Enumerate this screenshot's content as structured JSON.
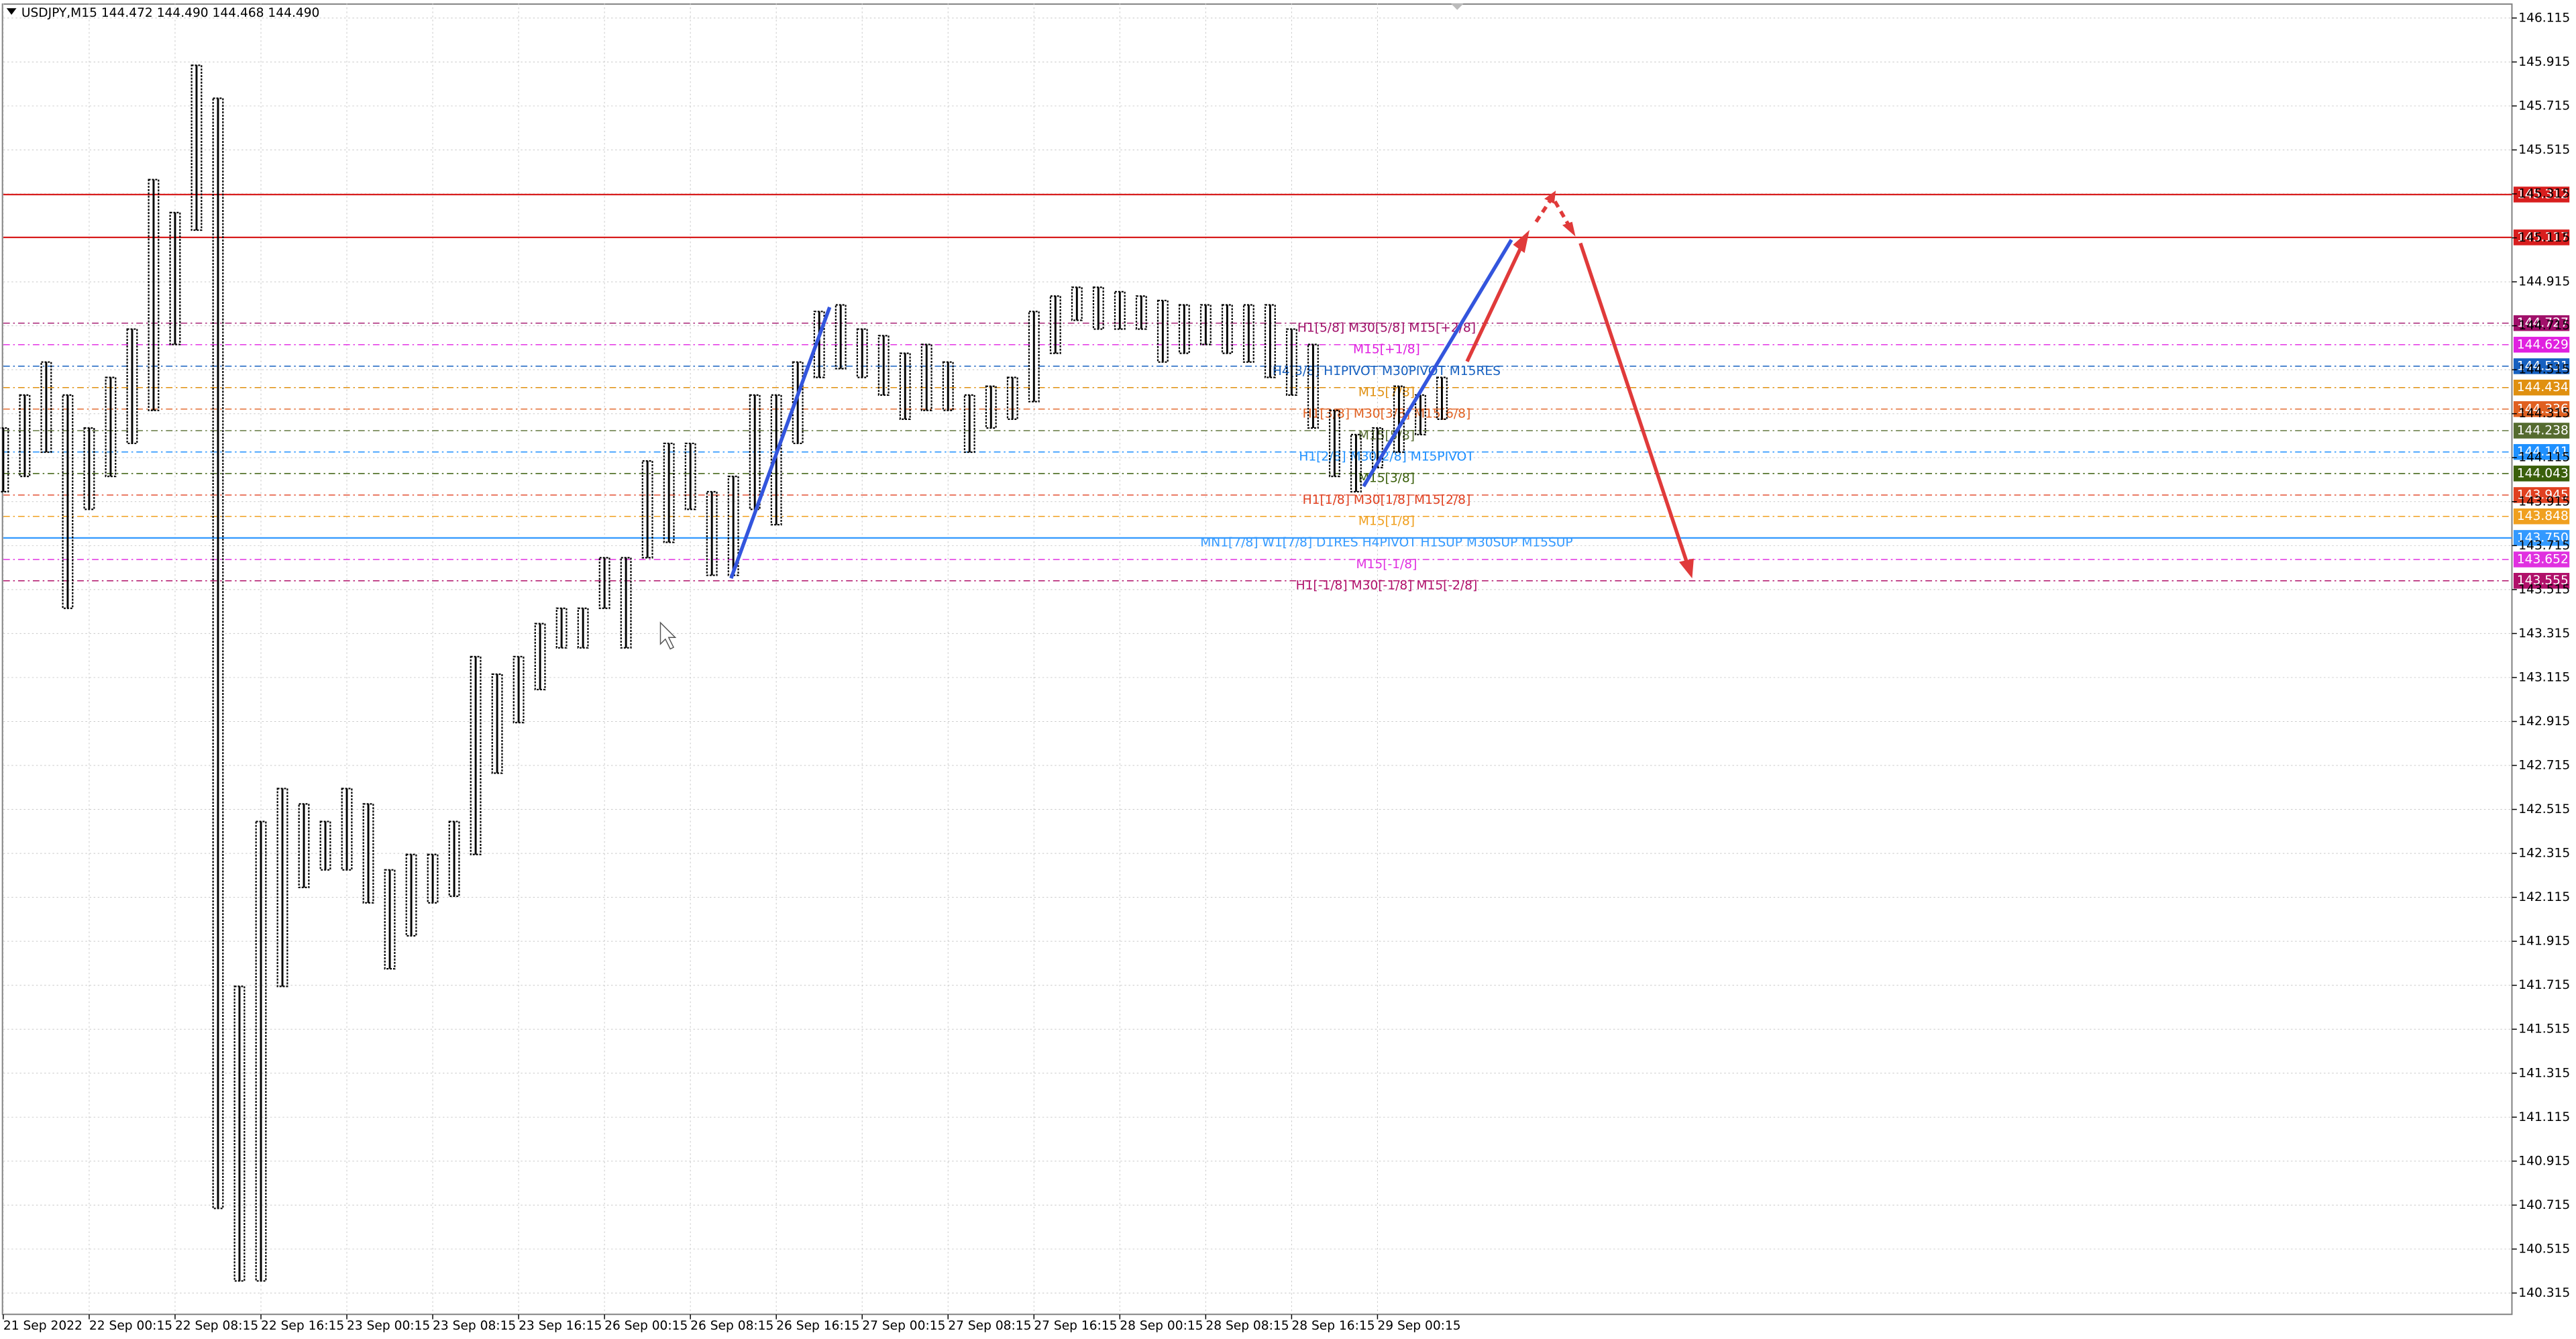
{
  "chart_data": {
    "type": "candlestick",
    "header": "USDJPY,M15  144.472 144.490 144.468 144.490",
    "categories": [
      "21 Sep 2022",
      null,
      null,
      null,
      "22 Sep 00:15",
      null,
      null,
      null,
      "22 Sep 08:15",
      null,
      null,
      null,
      "22 Sep 16:15",
      null,
      null,
      null,
      "23 Sep 00:15",
      null,
      null,
      null,
      "23 Sep 08:15",
      null,
      null,
      null,
      "23 Sep 16:15",
      null,
      null,
      null,
      "26 Sep 00:15",
      null,
      null,
      null,
      "26 Sep 08:15",
      null,
      null,
      null,
      "26 Sep 16:15",
      null,
      null,
      null,
      "27 Sep 00:15",
      null,
      null,
      null,
      "27 Sep 08:15",
      null,
      null,
      null,
      "27 Sep 16:15",
      null,
      null,
      null,
      "28 Sep 00:15",
      null,
      null,
      null,
      "28 Sep 08:15",
      null,
      null,
      null,
      "28 Sep 16:15",
      null,
      null,
      null,
      "29 Sep 00:15",
      null,
      null,
      null
    ],
    "series": [
      {
        "name": "high",
        "color": "#000000",
        "values": [
          144.25,
          144.4,
          144.55,
          144.4,
          144.25,
          144.48,
          144.7,
          145.38,
          145.23,
          145.9,
          145.75,
          141.71,
          142.46,
          142.61,
          142.54,
          142.46,
          142.61,
          142.54,
          142.24,
          142.31,
          142.31,
          142.46,
          143.21,
          143.13,
          143.21,
          143.36,
          143.43,
          143.43,
          143.66,
          143.66,
          144.1,
          144.18,
          144.18,
          143.96,
          144.03,
          144.4,
          144.4,
          144.55,
          144.78,
          144.81,
          144.7,
          144.67,
          144.59,
          144.63,
          144.55,
          144.4,
          144.44,
          144.48,
          144.78,
          144.85,
          144.89,
          144.89,
          144.87,
          144.85,
          144.83,
          144.81,
          144.81,
          144.81,
          144.81,
          144.81,
          144.7,
          144.63,
          144.33,
          144.22,
          144.25,
          144.44,
          144.4,
          144.48
        ]
      },
      {
        "name": "low",
        "color": "#000000",
        "values": [
          143.96,
          144.03,
          144.14,
          143.43,
          143.88,
          144.03,
          144.18,
          144.33,
          144.63,
          145.15,
          140.7,
          140.37,
          140.37,
          141.71,
          142.16,
          142.24,
          142.24,
          142.09,
          141.79,
          141.94,
          142.09,
          142.12,
          142.31,
          142.68,
          142.91,
          143.06,
          143.25,
          143.25,
          143.43,
          143.25,
          143.66,
          143.73,
          143.88,
          143.58,
          143.58,
          143.88,
          143.81,
          144.18,
          144.48,
          144.52,
          144.48,
          144.4,
          144.29,
          144.33,
          144.33,
          144.14,
          144.25,
          144.29,
          144.37,
          144.59,
          144.74,
          144.7,
          144.7,
          144.7,
          144.55,
          144.59,
          144.63,
          144.59,
          144.55,
          144.48,
          144.4,
          144.25,
          144.03,
          143.96,
          144.07,
          144.14,
          144.22,
          144.29
        ]
      }
    ],
    "ylim": [
      140.218,
      146.182
    ],
    "yticks": [
      140.315,
      140.515,
      140.715,
      140.915,
      141.115,
      141.315,
      141.515,
      141.715,
      141.915,
      142.115,
      142.315,
      142.515,
      142.715,
      142.915,
      143.115,
      143.315,
      143.515,
      143.715,
      143.915,
      144.115,
      144.315,
      144.515,
      144.715,
      144.915,
      145.115,
      145.315,
      145.515,
      145.715,
      145.915,
      146.115
    ],
    "grid": true,
    "levels": {
      "values": [
        145.312,
        145.117,
        144.727,
        144.629,
        144.531,
        144.434,
        144.336,
        144.238,
        144.141,
        144.043,
        143.945,
        143.848,
        143.75,
        143.652,
        143.555
      ],
      "value_labels": [
        "145.312",
        "145.117",
        "144.727",
        "144.629",
        "144.531",
        "144.434",
        "144.336",
        "144.238",
        "144.141",
        "144.043",
        "143.945",
        "143.848",
        "143.750",
        "143.652",
        "143.555"
      ],
      "names": [
        null,
        null,
        "H1[5/8] M30[5/8] M15[+2/8]",
        "M15[+1/8]",
        "H4[3/8] H1PIVOT M30PIVOT M15RES",
        "M15[7/8]",
        "H1[3/8] M30[3/8] M15[6/8]",
        "M15[5/8]",
        "H1[2/8] M30[2/8] M15PIVOT",
        "M15[3/8]",
        "H1[1/8] M30[1/8] M15[2/8]",
        "M15[1/8]",
        "MN1[7/8] W1[7/8] D1RES H4PIVOT H1SUP M30SUP M15SUP",
        "M15[-1/8]",
        "H1[-1/8] M30[-1/8] M15[-2/8]"
      ],
      "colors": [
        "#d81e1e",
        "#d81e1e",
        "#a0106a",
        "#e020e0",
        "#1660c0",
        "#e09010",
        "#e06020",
        "#556b2f",
        "#1e90ff",
        "#3a5f0b",
        "#e04020",
        "#f0a020",
        "#3399ff",
        "#e030e0",
        "#b0106a"
      ],
      "solid": [
        true,
        true,
        false,
        false,
        false,
        false,
        false,
        false,
        false,
        false,
        false,
        false,
        true,
        false,
        false
      ]
    }
  }
}
